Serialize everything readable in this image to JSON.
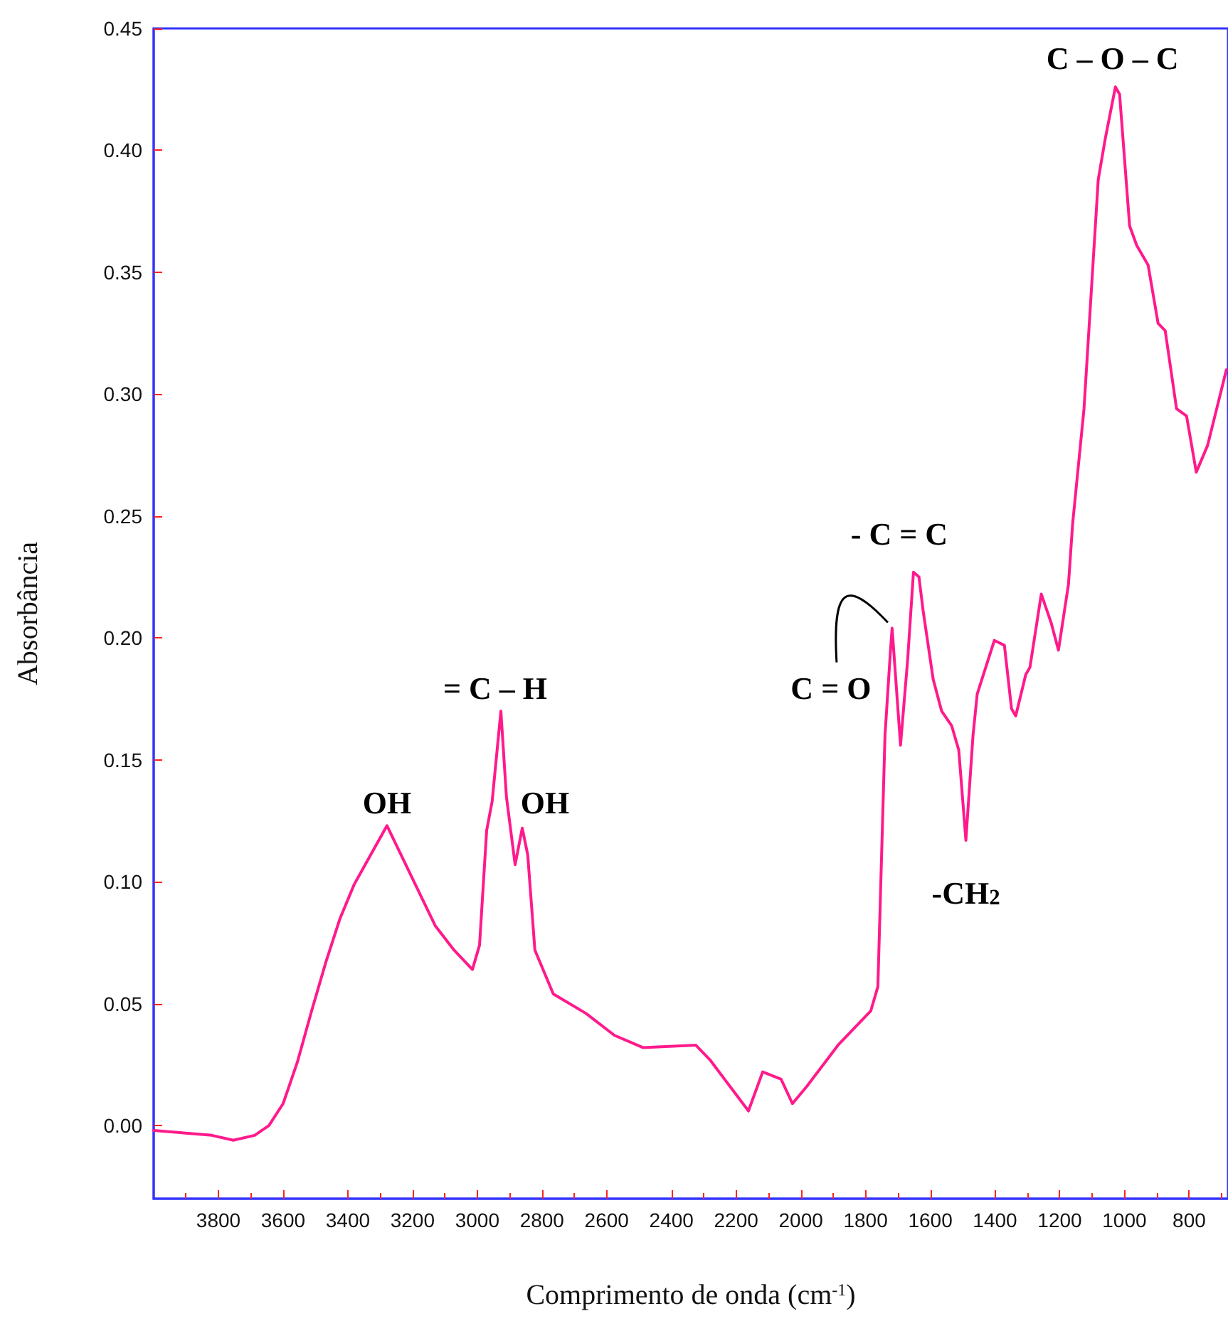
{
  "chart_data": {
    "type": "line",
    "xlabel": "Comprimento de onda (cm$^{-1}$)",
    "ylabel": "Absorbância",
    "color": "#ff1a8c",
    "marker": "none",
    "line_style": "solid",
    "grid": false,
    "xlim": [
      4000,
      680
    ],
    "xticks": [
      3800,
      3600,
      3400,
      3200,
      3000,
      2800,
      2600,
      2400,
      2200,
      2000,
      1800,
      1600,
      1400,
      1200,
      1000,
      800
    ],
    "ylim": [
      -0.03,
      0.45
    ],
    "yticks": [
      {
        "value": 0,
        "label": "0.00"
      },
      {
        "value": 0.05,
        "label": "0.05"
      },
      {
        "value": 0.1,
        "label": "0.10"
      },
      {
        "value": 0.15,
        "label": "0.15"
      },
      {
        "value": 0.2,
        "label": "0.20"
      },
      {
        "value": 0.25,
        "label": "0.25"
      },
      {
        "value": 0.3,
        "label": "0.30"
      },
      {
        "value": 0.35,
        "label": "0.35"
      },
      {
        "value": 0.4,
        "label": "0.40"
      },
      {
        "value": 0.45,
        "label": "0.45"
      }
    ],
    "x": [
      4000,
      3908,
      3820,
      3754,
      3688,
      3644,
      3600,
      3556,
      3512,
      3468,
      3424,
      3380,
      3279,
      3130,
      3072,
      3015,
      2993,
      2971,
      2954,
      2927,
      2910,
      2883,
      2861,
      2844,
      2822,
      2765,
      2664,
      2576,
      2488,
      2325,
      2281,
      2162,
      2118,
      2061,
      2026,
      1982,
      1885,
      1784,
      1762,
      1740,
      1723,
      1718,
      1692,
      1670,
      1652,
      1635,
      1622,
      1591,
      1565,
      1534,
      1512,
      1490,
      1468,
      1455,
      1402,
      1371,
      1349,
      1336,
      1305,
      1292,
      1257,
      1226,
      1204,
      1173,
      1160,
      1125,
      1081,
      1059,
      1028,
      1015,
      984,
      962,
      927,
      896,
      874,
      839,
      808,
      778,
      743,
      685
    ],
    "values": [
      -0.002,
      -0.003,
      -0.004,
      -0.006,
      -0.004,
      0.0,
      0.009,
      0.026,
      0.047,
      0.067,
      0.085,
      0.099,
      0.123,
      0.082,
      0.072,
      0.064,
      0.074,
      0.121,
      0.133,
      0.17,
      0.135,
      0.107,
      0.122,
      0.111,
      0.072,
      0.054,
      0.046,
      0.037,
      0.032,
      0.033,
      0.027,
      0.006,
      0.022,
      0.019,
      0.009,
      0.016,
      0.033,
      0.047,
      0.057,
      0.16,
      0.195,
      0.204,
      0.156,
      0.191,
      0.227,
      0.225,
      0.211,
      0.183,
      0.17,
      0.164,
      0.154,
      0.117,
      0.16,
      0.177,
      0.199,
      0.197,
      0.171,
      0.168,
      0.185,
      0.188,
      0.218,
      0.206,
      0.195,
      0.222,
      0.247,
      0.294,
      0.388,
      0.405,
      0.426,
      0.423,
      0.369,
      0.361,
      0.353,
      0.329,
      0.326,
      0.294,
      0.291,
      0.268,
      0.279,
      0.31
    ],
    "annotations": [
      {
        "text": "OH",
        "x": 3279,
        "y": 0.123
      },
      {
        "text": "= C – H",
        "x": 2927,
        "y": 0.17
      },
      {
        "text": "OH",
        "x": 2861,
        "y": 0.122
      },
      {
        "text": "C = O",
        "x": 1718,
        "y": 0.204
      },
      {
        "text": "- C = C",
        "x": 1652,
        "y": 0.227
      },
      {
        "text": "-CH$_{2}$",
        "x": 1490,
        "y": 0.117
      },
      {
        "text": "C – O – C",
        "x": 1028,
        "y": 0.426
      }
    ]
  }
}
